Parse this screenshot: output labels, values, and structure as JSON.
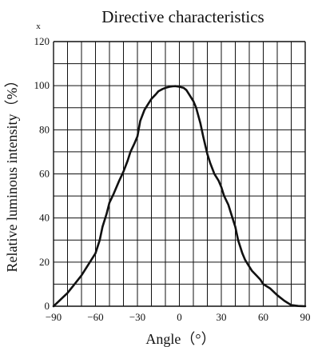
{
  "chart_data": {
    "type": "line",
    "title": "Directive characteristics",
    "xlabel": "Angle（°）",
    "ylabel": "Relative luminous intensity（%）",
    "corner_label": "x",
    "xlim": [
      -90,
      90
    ],
    "ylim": [
      0,
      120
    ],
    "x_ticks": [
      -90,
      -60,
      -30,
      0,
      30,
      60,
      90
    ],
    "y_ticks": [
      0,
      20,
      40,
      60,
      80,
      100,
      120
    ],
    "grid": true,
    "series": [
      {
        "x": [
          -90,
          -85,
          -80,
          -75,
          -70,
          -65,
          -60,
          -57,
          -55,
          -52,
          -50,
          -47,
          -45,
          -43,
          -40,
          -37,
          -35,
          -32,
          -30,
          -28,
          -25,
          -22,
          -20,
          -17,
          -15,
          -12,
          -10,
          -7,
          -5,
          -3,
          0,
          3,
          5,
          7,
          10,
          12,
          15,
          17,
          20,
          22,
          25,
          28,
          30,
          32,
          35,
          38,
          40,
          42,
          45,
          47,
          50,
          52,
          55,
          58,
          60,
          65,
          70,
          75,
          80,
          85,
          90
        ],
        "y": [
          0,
          3,
          6,
          10,
          14,
          19,
          24,
          30,
          36,
          42,
          47,
          51,
          54,
          57,
          61,
          66,
          70,
          74,
          77,
          84,
          89,
          92,
          94,
          96,
          97.5,
          98.5,
          99,
          99.5,
          99.7,
          99.8,
          99.5,
          99,
          98,
          96,
          93,
          90,
          83,
          77,
          69,
          65,
          60,
          57,
          54,
          50,
          46,
          40,
          36,
          30,
          24,
          21,
          18,
          16,
          14,
          12,
          10,
          8,
          5,
          2.5,
          0.5,
          0.1,
          0
        ]
      }
    ],
    "colors": {
      "line": "#111111",
      "grid": "#111111"
    }
  }
}
